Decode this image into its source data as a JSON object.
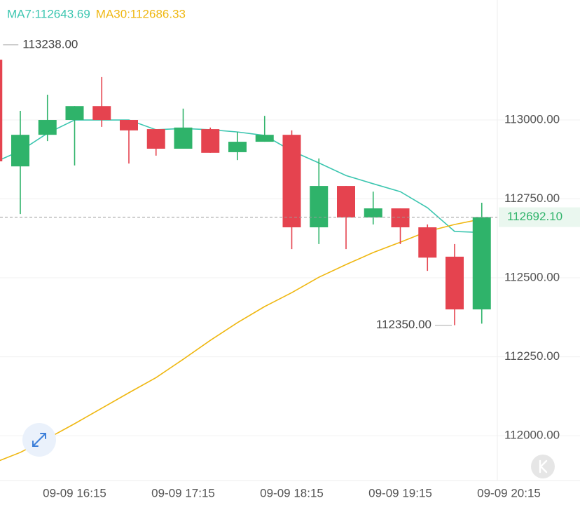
{
  "chart_data": {
    "type": "candlestick",
    "categories": [
      null,
      null,
      null,
      "09-09 16:15",
      null,
      null,
      null,
      "09-09 17:15",
      null,
      null,
      null,
      "09-09 18:15",
      null,
      null,
      null,
      "09-09 19:15",
      null,
      null,
      null,
      "09-09 20:15"
    ],
    "open": [
      113191,
      112853,
      112953,
      113000,
      113044,
      113000,
      112971,
      112909,
      112971,
      112898,
      112931,
      112953,
      112660,
      112791,
      112691,
      112720,
      112660,
      112567,
      112400,
      null
    ],
    "high": [
      113238,
      113029,
      113080,
      113044,
      113136,
      113000,
      112971,
      113036,
      112976,
      112962,
      113013,
      112967,
      112878,
      112791,
      112773,
      112720,
      112669,
      112607,
      112738,
      null
    ],
    "low": [
      112860,
      112702,
      112933,
      112856,
      112978,
      112862,
      112887,
      112909,
      112896,
      112873,
      112931,
      112591,
      112607,
      112591,
      112669,
      112607,
      112522,
      112350,
      112355,
      null
    ],
    "close": [
      112869,
      112953,
      113000,
      113044,
      113000,
      112967,
      112909,
      112976,
      112896,
      112931,
      112953,
      112660,
      112791,
      112691,
      112720,
      112660,
      112564,
      112400,
      112692.1,
      null
    ],
    "up_color": "#2fb36a",
    "down_color": "#e5434f",
    "series": [
      {
        "name": "MA7:112643.69",
        "color": "#3cc6b0",
        "values": [
          112864,
          112902,
          112958,
          113000,
          113000,
          113000,
          112969,
          112973,
          112969,
          112962,
          112951,
          112902,
          112864,
          112824,
          112798,
          112773,
          112722,
          112647,
          112643.69,
          null
        ]
      },
      {
        "name": "MA30:112686.33",
        "color": "#efb710",
        "values": [
          111913,
          111947,
          111991,
          112038,
          112087,
          112136,
          112184,
          112242,
          112302,
          112358,
          112409,
          112453,
          112502,
          112542,
          112580,
          112613,
          112647,
          112669,
          112686.33,
          null
        ]
      }
    ],
    "ylim": [
      111858,
      113380
    ],
    "yticks": [
      {
        "value": 112000,
        "label": "112000.00"
      },
      {
        "value": 112250,
        "label": "112250.00"
      },
      {
        "value": 112500,
        "label": "112500.00"
      },
      {
        "value": 112750,
        "label": "112750.00"
      },
      {
        "value": 113000,
        "label": "113000.00"
      }
    ],
    "grid": true,
    "high_annotation": {
      "value": 113238,
      "label": "113238.00"
    },
    "low_annotation": {
      "value": 112350,
      "label": "112350.00"
    },
    "last_price": {
      "value": 112692.1,
      "label": "112692.10"
    }
  }
}
